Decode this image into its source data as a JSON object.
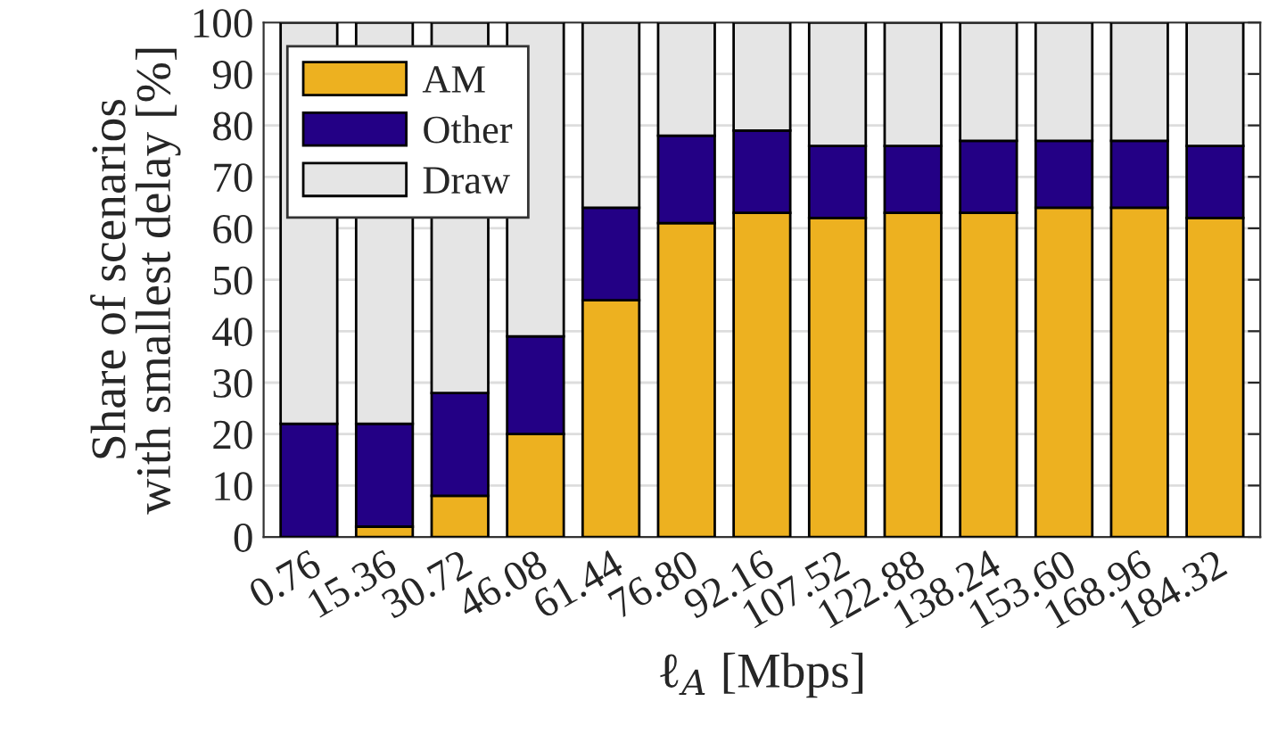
{
  "chart_data": {
    "type": "bar",
    "stacked": true,
    "xlabel": "ℓ$_{A}$ [Mbps]",
    "ylabel": "Share of scenarios\nwith smallest delay [%]",
    "categories": [
      "0.76",
      "15.36",
      "30.72",
      "46.08",
      "61.44",
      "76.80",
      "92.16",
      "107.52",
      "122.88",
      "138.24",
      "153.60",
      "168.96",
      "184.32"
    ],
    "series": [
      {
        "name": "AM",
        "color": "#edb120",
        "values": [
          0,
          2,
          8,
          20,
          46,
          61,
          63,
          62,
          63,
          63,
          64,
          64,
          62
        ]
      },
      {
        "name": "Other",
        "color": "#230085",
        "values": [
          22,
          20,
          20,
          19,
          18,
          17,
          16,
          14,
          13,
          14,
          13,
          13,
          14
        ]
      },
      {
        "name": "Draw",
        "color": "#e5e5e5",
        "values": [
          78,
          78,
          72,
          61,
          36,
          22,
          21,
          24,
          24,
          23,
          23,
          23,
          24
        ]
      }
    ],
    "ylim": [
      0,
      100
    ],
    "yticks": [
      0,
      10,
      20,
      30,
      40,
      50,
      60,
      70,
      80,
      90,
      100
    ],
    "grid": "y",
    "legend": "top left"
  }
}
